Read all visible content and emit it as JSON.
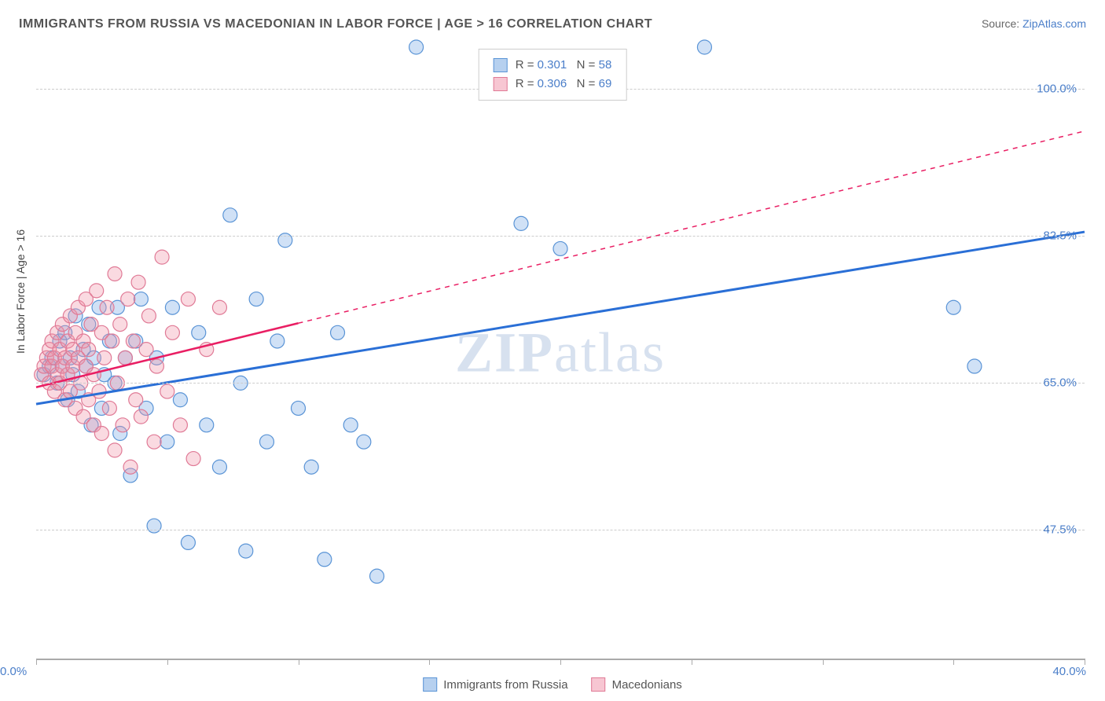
{
  "title": "IMMIGRANTS FROM RUSSIA VS MACEDONIAN IN LABOR FORCE | AGE > 16 CORRELATION CHART",
  "source_label": "Source: ",
  "source_link": "ZipAtlas.com",
  "y_axis_label": "In Labor Force | Age > 16",
  "watermark": "ZIPatlas",
  "chart": {
    "type": "scatter",
    "background_color": "#ffffff",
    "grid_color": "#cccccc",
    "axis_color": "#aaaaaa",
    "tick_label_color": "#4a7ec9",
    "xlim": [
      0.0,
      40.0
    ],
    "ylim": [
      32.0,
      105.0
    ],
    "x_min_label": "0.0%",
    "x_max_label": "40.0%",
    "x_ticks": [
      0,
      5,
      10,
      15,
      20,
      25,
      30,
      35,
      40
    ],
    "y_gridlines": [
      {
        "value": 100.0,
        "label": "100.0%"
      },
      {
        "value": 82.5,
        "label": "82.5%"
      },
      {
        "value": 65.0,
        "label": "65.0%"
      },
      {
        "value": 47.5,
        "label": "47.5%"
      }
    ],
    "marker_radius": 9,
    "marker_stroke_width": 1.2,
    "series": [
      {
        "id": "russia",
        "label": "Immigrants from Russia",
        "R": "0.301",
        "N": "58",
        "fill": "rgba(120,170,230,0.35)",
        "stroke": "#5a94d6",
        "swatch_fill": "#b6d0ef",
        "swatch_border": "#5a94d6",
        "trend_color": "#2a6fd6",
        "trend_width": 3,
        "trend_solid_from_x": 0.0,
        "trend_solid_to_x": 40.0,
        "trend_y_at_xmin": 62.5,
        "trend_y_at_xmax": 83.0,
        "points": [
          [
            0.3,
            66
          ],
          [
            0.5,
            67
          ],
          [
            0.6,
            68
          ],
          [
            0.8,
            65
          ],
          [
            0.9,
            70
          ],
          [
            1.0,
            67
          ],
          [
            1.1,
            71
          ],
          [
            1.2,
            63
          ],
          [
            1.3,
            68
          ],
          [
            1.4,
            66
          ],
          [
            1.5,
            73
          ],
          [
            1.6,
            64
          ],
          [
            1.8,
            69
          ],
          [
            1.9,
            67
          ],
          [
            2.0,
            72
          ],
          [
            2.1,
            60
          ],
          [
            2.2,
            68
          ],
          [
            2.4,
            74
          ],
          [
            2.5,
            62
          ],
          [
            2.6,
            66
          ],
          [
            2.8,
            70
          ],
          [
            3.0,
            65
          ],
          [
            3.1,
            74
          ],
          [
            3.2,
            59
          ],
          [
            3.4,
            68
          ],
          [
            3.6,
            54
          ],
          [
            3.8,
            70
          ],
          [
            4.0,
            75
          ],
          [
            4.2,
            62
          ],
          [
            4.5,
            48
          ],
          [
            4.6,
            68
          ],
          [
            5.0,
            58
          ],
          [
            5.2,
            74
          ],
          [
            5.5,
            63
          ],
          [
            5.8,
            46
          ],
          [
            6.2,
            71
          ],
          [
            6.5,
            60
          ],
          [
            7.0,
            55
          ],
          [
            7.4,
            85
          ],
          [
            7.8,
            65
          ],
          [
            8.0,
            45
          ],
          [
            8.4,
            75
          ],
          [
            8.8,
            58
          ],
          [
            9.2,
            70
          ],
          [
            9.5,
            82
          ],
          [
            10.0,
            62
          ],
          [
            10.5,
            55
          ],
          [
            11.0,
            44
          ],
          [
            11.5,
            71
          ],
          [
            12.0,
            60
          ],
          [
            12.5,
            58
          ],
          [
            13.0,
            42
          ],
          [
            14.5,
            105
          ],
          [
            18.5,
            84
          ],
          [
            20.0,
            81
          ],
          [
            25.5,
            105
          ],
          [
            35.0,
            74
          ],
          [
            35.8,
            67
          ]
        ]
      },
      {
        "id": "macedonian",
        "label": "Macedonians",
        "R": "0.306",
        "N": "69",
        "fill": "rgba(240,150,170,0.35)",
        "stroke": "#e07a96",
        "swatch_fill": "#f7c6d2",
        "swatch_border": "#e07a96",
        "trend_color": "#e91e63",
        "trend_width": 2.5,
        "trend_solid_from_x": 0.0,
        "trend_solid_to_x": 10.0,
        "trend_dashed_to_x": 40.0,
        "trend_y_at_xmin": 64.5,
        "trend_y_at_xmax": 95.0,
        "points": [
          [
            0.2,
            66
          ],
          [
            0.3,
            67
          ],
          [
            0.4,
            68
          ],
          [
            0.5,
            65
          ],
          [
            0.5,
            69
          ],
          [
            0.6,
            67
          ],
          [
            0.6,
            70
          ],
          [
            0.7,
            64
          ],
          [
            0.7,
            68
          ],
          [
            0.8,
            66
          ],
          [
            0.8,
            71
          ],
          [
            0.9,
            65
          ],
          [
            0.9,
            69
          ],
          [
            1.0,
            67
          ],
          [
            1.0,
            72
          ],
          [
            1.1,
            63
          ],
          [
            1.1,
            68
          ],
          [
            1.2,
            70
          ],
          [
            1.2,
            66
          ],
          [
            1.3,
            73
          ],
          [
            1.3,
            64
          ],
          [
            1.4,
            69
          ],
          [
            1.4,
            67
          ],
          [
            1.5,
            71
          ],
          [
            1.5,
            62
          ],
          [
            1.6,
            68
          ],
          [
            1.6,
            74
          ],
          [
            1.7,
            65
          ],
          [
            1.8,
            70
          ],
          [
            1.8,
            61
          ],
          [
            1.9,
            67
          ],
          [
            1.9,
            75
          ],
          [
            2.0,
            63
          ],
          [
            2.0,
            69
          ],
          [
            2.1,
            72
          ],
          [
            2.2,
            60
          ],
          [
            2.2,
            66
          ],
          [
            2.3,
            76
          ],
          [
            2.4,
            64
          ],
          [
            2.5,
            71
          ],
          [
            2.5,
            59
          ],
          [
            2.6,
            68
          ],
          [
            2.7,
            74
          ],
          [
            2.8,
            62
          ],
          [
            2.9,
            70
          ],
          [
            3.0,
            57
          ],
          [
            3.0,
            78
          ],
          [
            3.1,
            65
          ],
          [
            3.2,
            72
          ],
          [
            3.3,
            60
          ],
          [
            3.4,
            68
          ],
          [
            3.5,
            75
          ],
          [
            3.6,
            55
          ],
          [
            3.7,
            70
          ],
          [
            3.8,
            63
          ],
          [
            3.9,
            77
          ],
          [
            4.0,
            61
          ],
          [
            4.2,
            69
          ],
          [
            4.3,
            73
          ],
          [
            4.5,
            58
          ],
          [
            4.6,
            67
          ],
          [
            4.8,
            80
          ],
          [
            5.0,
            64
          ],
          [
            5.2,
            71
          ],
          [
            5.5,
            60
          ],
          [
            5.8,
            75
          ],
          [
            6.0,
            56
          ],
          [
            6.5,
            69
          ],
          [
            7.0,
            74
          ]
        ]
      }
    ],
    "top_legend": {
      "r_label": "R  = ",
      "n_label": "N  = "
    }
  }
}
